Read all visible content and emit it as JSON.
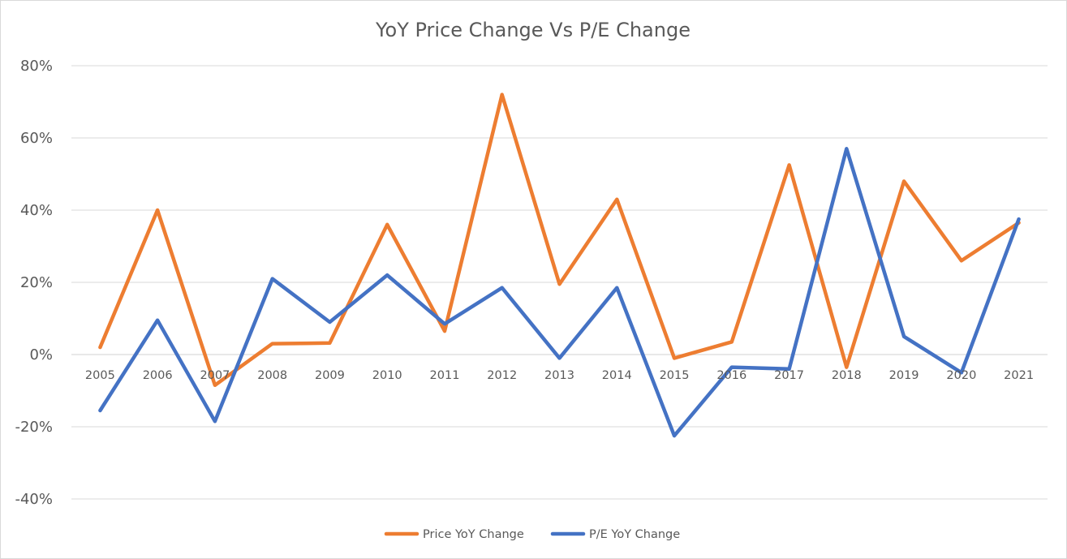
{
  "chart_data": {
    "type": "line",
    "title": "YoY Price Change Vs P/E Change",
    "xlabel": "",
    "ylabel": "",
    "categories": [
      "2005",
      "2006",
      "2007",
      "2008",
      "2009",
      "2010",
      "2011",
      "2012",
      "2013",
      "2014",
      "2015",
      "2016",
      "2017",
      "2018",
      "2019",
      "2020",
      "2021"
    ],
    "y_ticks": [
      -40,
      -20,
      0,
      20,
      40,
      60,
      80
    ],
    "y_tick_labels": [
      "-40%",
      "-20%",
      "0%",
      "20%",
      "40%",
      "60%",
      "80%"
    ],
    "ylim": [
      -40,
      80
    ],
    "grid": true,
    "legend_position": "bottom",
    "series": [
      {
        "name": "Price YoY Change",
        "color": "#ED7D31",
        "values": [
          2,
          40,
          -8.5,
          3,
          3.2,
          36,
          6.5,
          72,
          19.5,
          43,
          -1,
          3.5,
          52.5,
          -3.5,
          48,
          26,
          36.5
        ]
      },
      {
        "name": "P/E YoY Change",
        "color": "#4472C4",
        "values": [
          -15.5,
          9.5,
          -18.5,
          21,
          9,
          22,
          8.5,
          18.5,
          -1,
          18.5,
          -22.5,
          -3.5,
          -4,
          57,
          5,
          -5,
          37.5
        ]
      }
    ]
  }
}
